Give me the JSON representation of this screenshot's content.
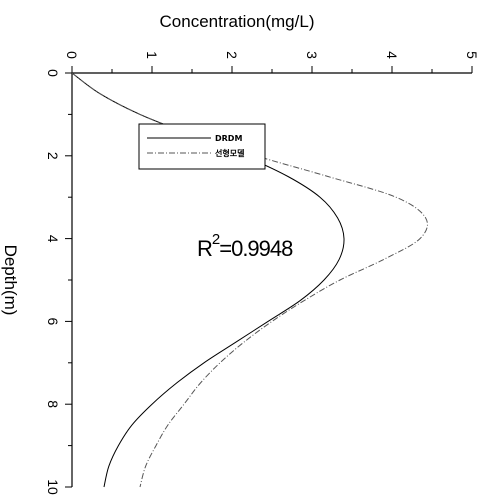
{
  "chart_data": {
    "type": "line",
    "orientation": "depth-profile",
    "title": "",
    "xlabel": "Concentration(mg/L)",
    "ylabel": "Depth(m)",
    "xlim": [
      0,
      5
    ],
    "ylim": [
      0,
      10
    ],
    "x_ticks": [
      "0",
      "1",
      "2",
      "3",
      "4",
      "5"
    ],
    "y_ticks": [
      "0",
      "2",
      "4",
      "6",
      "8",
      "10"
    ],
    "legend_position": "top-center",
    "annotation": {
      "text": "R",
      "superscript": "2",
      "value": "=0.9948"
    },
    "series": [
      {
        "name": "DRDM",
        "color": "#000000",
        "points": [
          {
            "depth": 0.0,
            "conc": 0.0
          },
          {
            "depth": 0.5,
            "conc": 0.35
          },
          {
            "depth": 1.0,
            "conc": 0.85
          },
          {
            "depth": 1.5,
            "conc": 1.5
          },
          {
            "depth": 2.0,
            "conc": 2.15
          },
          {
            "depth": 2.5,
            "conc": 2.7
          },
          {
            "depth": 3.0,
            "conc": 3.1
          },
          {
            "depth": 3.5,
            "conc": 3.32
          },
          {
            "depth": 4.0,
            "conc": 3.4
          },
          {
            "depth": 4.5,
            "conc": 3.34
          },
          {
            "depth": 5.0,
            "conc": 3.15
          },
          {
            "depth": 5.5,
            "conc": 2.85
          },
          {
            "depth": 6.0,
            "conc": 2.45
          },
          {
            "depth": 6.5,
            "conc": 2.05
          },
          {
            "depth": 7.0,
            "conc": 1.65
          },
          {
            "depth": 7.5,
            "conc": 1.3
          },
          {
            "depth": 8.0,
            "conc": 1.0
          },
          {
            "depth": 8.5,
            "conc": 0.75
          },
          {
            "depth": 9.0,
            "conc": 0.58
          },
          {
            "depth": 9.5,
            "conc": 0.46
          },
          {
            "depth": 10.0,
            "conc": 0.4
          }
        ]
      },
      {
        "name": "선형모델",
        "color": "#555555",
        "points": [
          {
            "depth": 0.0,
            "conc": 0.0
          },
          {
            "depth": 0.5,
            "conc": 0.35
          },
          {
            "depth": 1.0,
            "conc": 0.85
          },
          {
            "depth": 1.5,
            "conc": 1.5
          },
          {
            "depth": 2.0,
            "conc": 2.3
          },
          {
            "depth": 2.5,
            "conc": 3.2
          },
          {
            "depth": 3.0,
            "conc": 4.05
          },
          {
            "depth": 3.5,
            "conc": 4.42
          },
          {
            "depth": 4.0,
            "conc": 4.35
          },
          {
            "depth": 4.5,
            "conc": 3.9
          },
          {
            "depth": 5.0,
            "conc": 3.35
          },
          {
            "depth": 5.5,
            "conc": 2.9
          },
          {
            "depth": 6.0,
            "conc": 2.5
          },
          {
            "depth": 6.5,
            "conc": 2.15
          },
          {
            "depth": 7.0,
            "conc": 1.85
          },
          {
            "depth": 7.5,
            "conc": 1.6
          },
          {
            "depth": 8.0,
            "conc": 1.4
          },
          {
            "depth": 8.5,
            "conc": 1.2
          },
          {
            "depth": 9.0,
            "conc": 1.05
          },
          {
            "depth": 9.5,
            "conc": 0.92
          },
          {
            "depth": 10.0,
            "conc": 0.85
          }
        ]
      }
    ]
  }
}
